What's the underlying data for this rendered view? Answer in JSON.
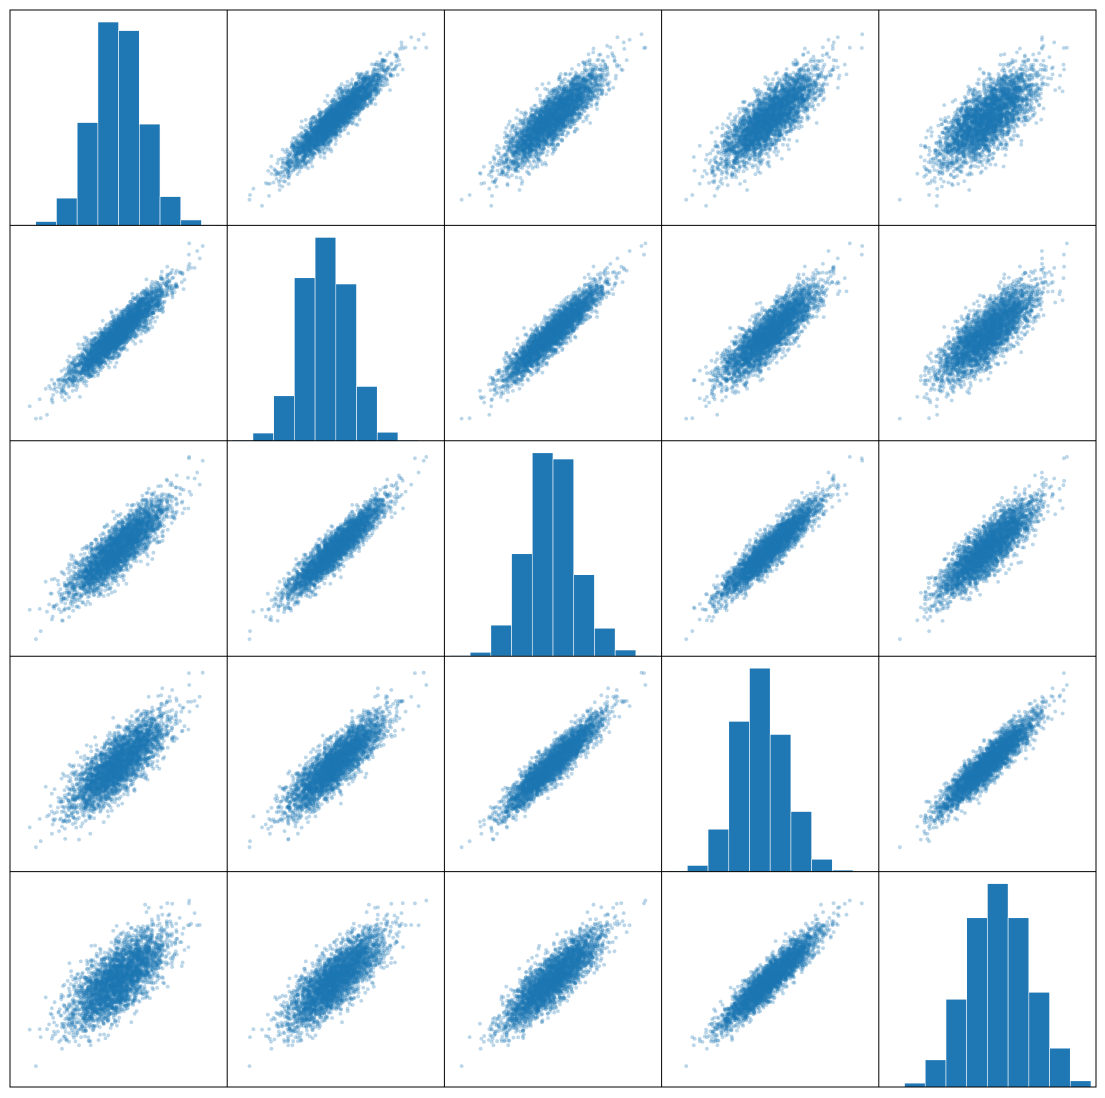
{
  "chart_data": {
    "type": "scatter_matrix",
    "variables": 5,
    "point_color": "#1f77b4",
    "point_alpha": 0.3,
    "bar_color": "#1f77b4",
    "tick_labels": false,
    "axis_labels": false,
    "grid": false,
    "legend": "none",
    "correlation": [
      [
        1.0,
        0.93,
        0.86,
        0.8,
        0.72
      ],
      [
        0.93,
        1.0,
        0.93,
        0.86,
        0.8
      ],
      [
        0.86,
        0.93,
        1.0,
        0.93,
        0.86
      ],
      [
        0.8,
        0.86,
        0.93,
        1.0,
        0.93
      ],
      [
        0.72,
        0.8,
        0.86,
        0.93,
        1.0
      ]
    ],
    "histograms": [
      [
        1,
        5,
        35,
        132,
        261,
        250,
        130,
        37,
        7,
        1
      ],
      [
        1,
        10,
        58,
        210,
        262,
        202,
        70,
        11,
        1,
        0
      ],
      [
        1,
        5,
        40,
        132,
        262,
        254,
        105,
        36,
        8,
        1
      ],
      [
        1,
        8,
        55,
        195,
        264,
        178,
        78,
        16,
        2,
        0
      ],
      [
        1,
        5,
        35,
        113,
        218,
        262,
        218,
        122,
        50,
        8
      ]
    ]
  }
}
